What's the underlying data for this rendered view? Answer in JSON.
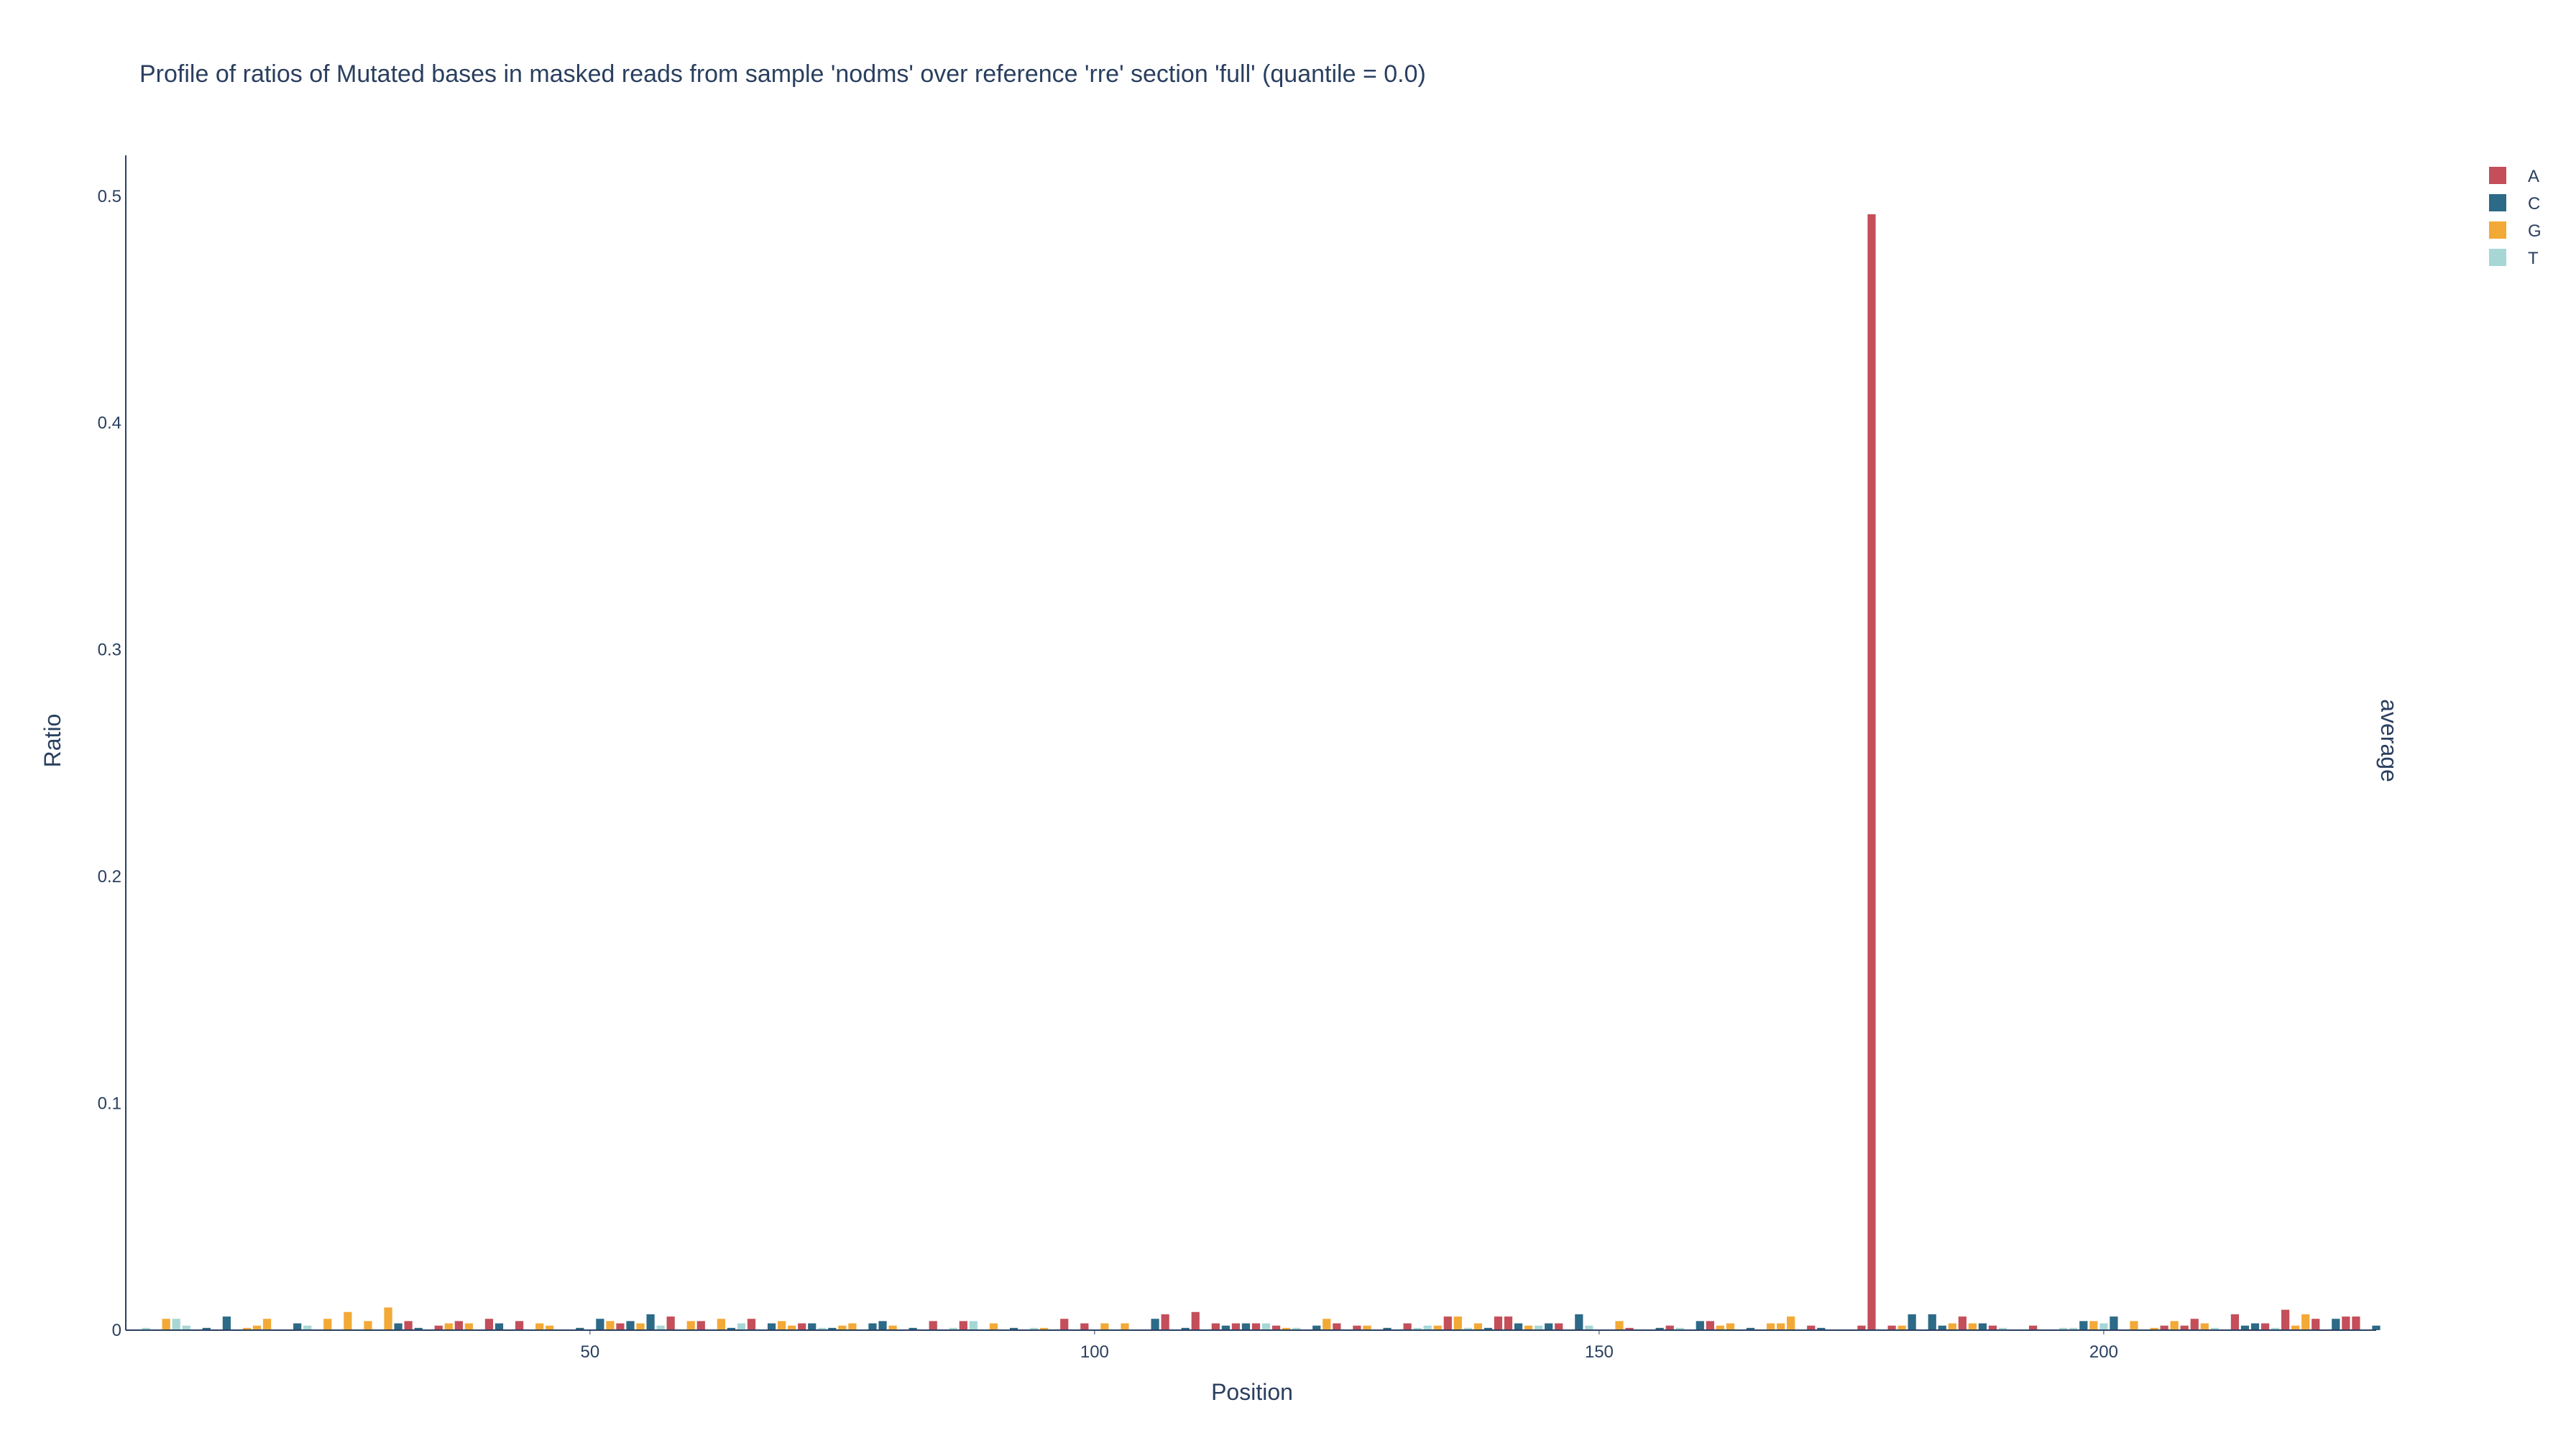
{
  "chart_data": {
    "type": "bar",
    "title": "Profile of ratios of Mutated bases in masked reads from sample 'nodms' over reference 'rre' section 'full' (quantile = 0.0)",
    "xlabel": "Position",
    "ylabel": "Ratio",
    "side_annotation": "average",
    "xlim": [
      4,
      227
    ],
    "ylim": [
      0,
      0.518
    ],
    "x_ticks": [
      50,
      100,
      150,
      200
    ],
    "y_ticks": [
      0,
      0.1,
      0.2,
      0.3,
      0.4,
      0.5
    ],
    "y_tick_labels": [
      "0",
      "0.1",
      "0.2",
      "0.3",
      "0.4",
      "0.5"
    ],
    "grid": false,
    "legend_position": "top-right",
    "series": [
      {
        "name": "A",
        "color": "#c44e5a",
        "points": [
          [
            32,
            0.004
          ],
          [
            35,
            0.002
          ],
          [
            37,
            0.004
          ],
          [
            40,
            0.005
          ],
          [
            43,
            0.004
          ],
          [
            53,
            0.003
          ],
          [
            58,
            0.006
          ],
          [
            61,
            0.004
          ],
          [
            66,
            0.005
          ],
          [
            71,
            0.003
          ],
          [
            84,
            0.004
          ],
          [
            87,
            0.004
          ],
          [
            97,
            0.005
          ],
          [
            99,
            0.003
          ],
          [
            107,
            0.007
          ],
          [
            110,
            0.008
          ],
          [
            112,
            0.003
          ],
          [
            114,
            0.003
          ],
          [
            116,
            0.003
          ],
          [
            118,
            0.002
          ],
          [
            124,
            0.003
          ],
          [
            126,
            0.002
          ],
          [
            131,
            0.003
          ],
          [
            135,
            0.006
          ],
          [
            140,
            0.006
          ],
          [
            141,
            0.006
          ],
          [
            146,
            0.003
          ],
          [
            153,
            0.001
          ],
          [
            157,
            0.002
          ],
          [
            161,
            0.004
          ],
          [
            171,
            0.002
          ],
          [
            176,
            0.002
          ],
          [
            177,
            0.492
          ],
          [
            179,
            0.002
          ],
          [
            186,
            0.006
          ],
          [
            189,
            0.002
          ],
          [
            193,
            0.002
          ],
          [
            206,
            0.002
          ],
          [
            208,
            0.002
          ],
          [
            209,
            0.005
          ],
          [
            213,
            0.007
          ],
          [
            216,
            0.003
          ],
          [
            218,
            0.009
          ],
          [
            221,
            0.005
          ],
          [
            224,
            0.006
          ],
          [
            225,
            0.006
          ]
        ]
      },
      {
        "name": "C",
        "color": "#2c6a87",
        "points": [
          [
            12,
            0.001
          ],
          [
            14,
            0.006
          ],
          [
            21,
            0.003
          ],
          [
            31,
            0.003
          ],
          [
            33,
            0.001
          ],
          [
            41,
            0.003
          ],
          [
            49,
            0.001
          ],
          [
            51,
            0.005
          ],
          [
            54,
            0.004
          ],
          [
            56,
            0.007
          ],
          [
            64,
            0.001
          ],
          [
            68,
            0.003
          ],
          [
            72,
            0.003
          ],
          [
            74,
            0.001
          ],
          [
            78,
            0.003
          ],
          [
            79,
            0.004
          ],
          [
            82,
            0.001
          ],
          [
            92,
            0.001
          ],
          [
            106,
            0.005
          ],
          [
            109,
            0.001
          ],
          [
            113,
            0.002
          ],
          [
            115,
            0.003
          ],
          [
            122,
            0.002
          ],
          [
            129,
            0.001
          ],
          [
            139,
            0.001
          ],
          [
            142,
            0.003
          ],
          [
            145,
            0.003
          ],
          [
            148,
            0.007
          ],
          [
            156,
            0.001
          ],
          [
            160,
            0.004
          ],
          [
            165,
            0.001
          ],
          [
            172,
            0.001
          ],
          [
            181,
            0.007
          ],
          [
            183,
            0.007
          ],
          [
            184,
            0.002
          ],
          [
            188,
            0.003
          ],
          [
            198,
            0.004
          ],
          [
            201,
            0.006
          ],
          [
            214,
            0.002
          ],
          [
            215,
            0.003
          ],
          [
            223,
            0.005
          ],
          [
            227,
            0.002
          ]
        ]
      },
      {
        "name": "G",
        "color": "#f3a936",
        "points": [
          [
            8,
            0.005
          ],
          [
            16,
            0.001
          ],
          [
            17,
            0.002
          ],
          [
            18,
            0.005
          ],
          [
            24,
            0.005
          ],
          [
            26,
            0.008
          ],
          [
            28,
            0.004
          ],
          [
            30,
            0.01
          ],
          [
            36,
            0.003
          ],
          [
            38,
            0.003
          ],
          [
            45,
            0.003
          ],
          [
            46,
            0.002
          ],
          [
            52,
            0.004
          ],
          [
            55,
            0.003
          ],
          [
            60,
            0.004
          ],
          [
            63,
            0.005
          ],
          [
            69,
            0.004
          ],
          [
            70,
            0.002
          ],
          [
            75,
            0.002
          ],
          [
            76,
            0.003
          ],
          [
            80,
            0.002
          ],
          [
            90,
            0.003
          ],
          [
            95,
            0.001
          ],
          [
            101,
            0.003
          ],
          [
            103,
            0.003
          ],
          [
            119,
            0.001
          ],
          [
            123,
            0.005
          ],
          [
            127,
            0.002
          ],
          [
            134,
            0.002
          ],
          [
            136,
            0.006
          ],
          [
            138,
            0.003
          ],
          [
            143,
            0.002
          ],
          [
            152,
            0.004
          ],
          [
            162,
            0.002
          ],
          [
            163,
            0.003
          ],
          [
            167,
            0.003
          ],
          [
            168,
            0.003
          ],
          [
            169,
            0.006
          ],
          [
            180,
            0.002
          ],
          [
            185,
            0.003
          ],
          [
            187,
            0.003
          ],
          [
            199,
            0.004
          ],
          [
            203,
            0.004
          ],
          [
            205,
            0.001
          ],
          [
            207,
            0.004
          ],
          [
            210,
            0.003
          ],
          [
            219,
            0.002
          ],
          [
            220,
            0.007
          ]
        ]
      },
      {
        "name": "T",
        "color": "#a7d7d5",
        "points": [
          [
            6,
            0.001
          ],
          [
            9,
            0.005
          ],
          [
            10,
            0.002
          ],
          [
            22,
            0.002
          ],
          [
            57,
            0.002
          ],
          [
            65,
            0.003
          ],
          [
            73,
            0.001
          ],
          [
            86,
            0.001
          ],
          [
            88,
            0.004
          ],
          [
            94,
            0.001
          ],
          [
            117,
            0.003
          ],
          [
            120,
            0.001
          ],
          [
            132,
            0.001
          ],
          [
            133,
            0.002
          ],
          [
            137,
            0.001
          ],
          [
            144,
            0.002
          ],
          [
            149,
            0.002
          ],
          [
            158,
            0.001
          ],
          [
            190,
            0.001
          ],
          [
            196,
            0.001
          ],
          [
            197,
            0.001
          ],
          [
            200,
            0.003
          ],
          [
            211,
            0.001
          ],
          [
            217,
            0.001
          ]
        ]
      }
    ]
  }
}
